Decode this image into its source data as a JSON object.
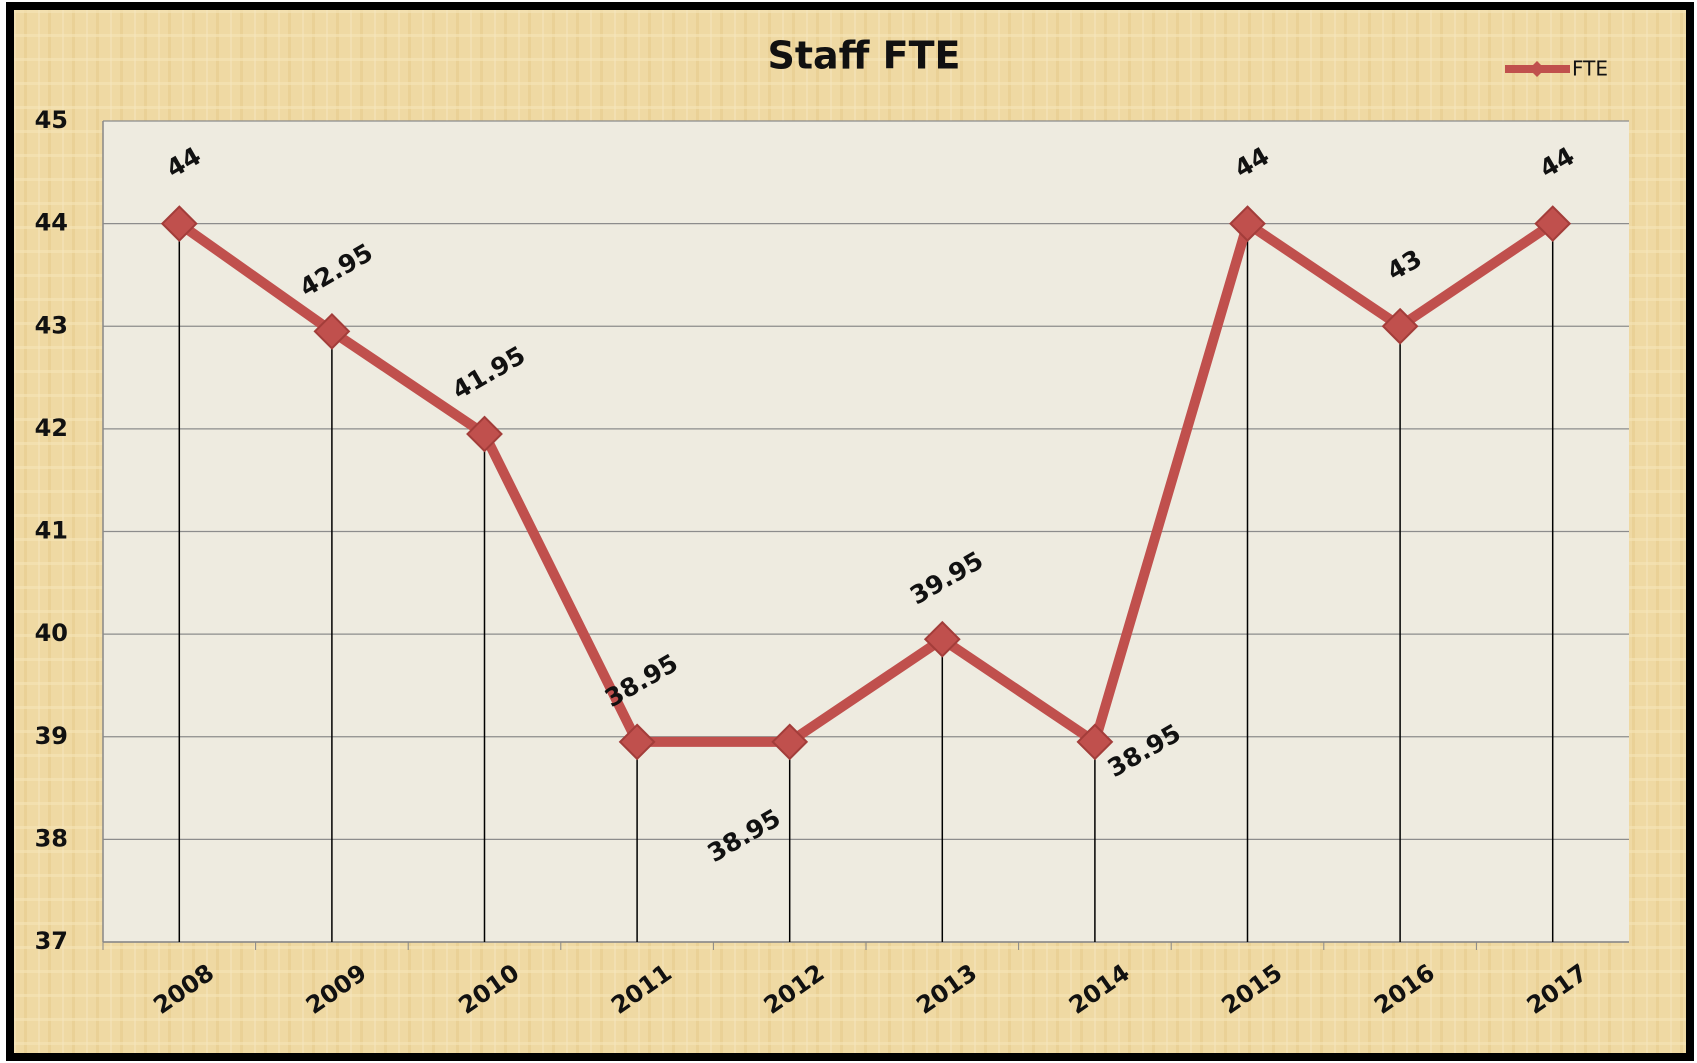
{
  "chart_data": {
    "type": "line",
    "title": "Staff FTE",
    "categories": [
      "2008",
      "2009",
      "2010",
      "2011",
      "2012",
      "2013",
      "2014",
      "2015",
      "2016",
      "2017"
    ],
    "series": [
      {
        "name": "FTE",
        "color": "#c0504d",
        "values": [
          44,
          42.95,
          41.95,
          38.95,
          38.95,
          39.95,
          38.95,
          44,
          43,
          44
        ]
      }
    ],
    "ylim": [
      37,
      45
    ],
    "yticks": [
      37,
      38,
      39,
      40,
      41,
      42,
      43,
      44,
      45
    ],
    "grid": true,
    "drop_lines": true,
    "legend": "top-right"
  }
}
